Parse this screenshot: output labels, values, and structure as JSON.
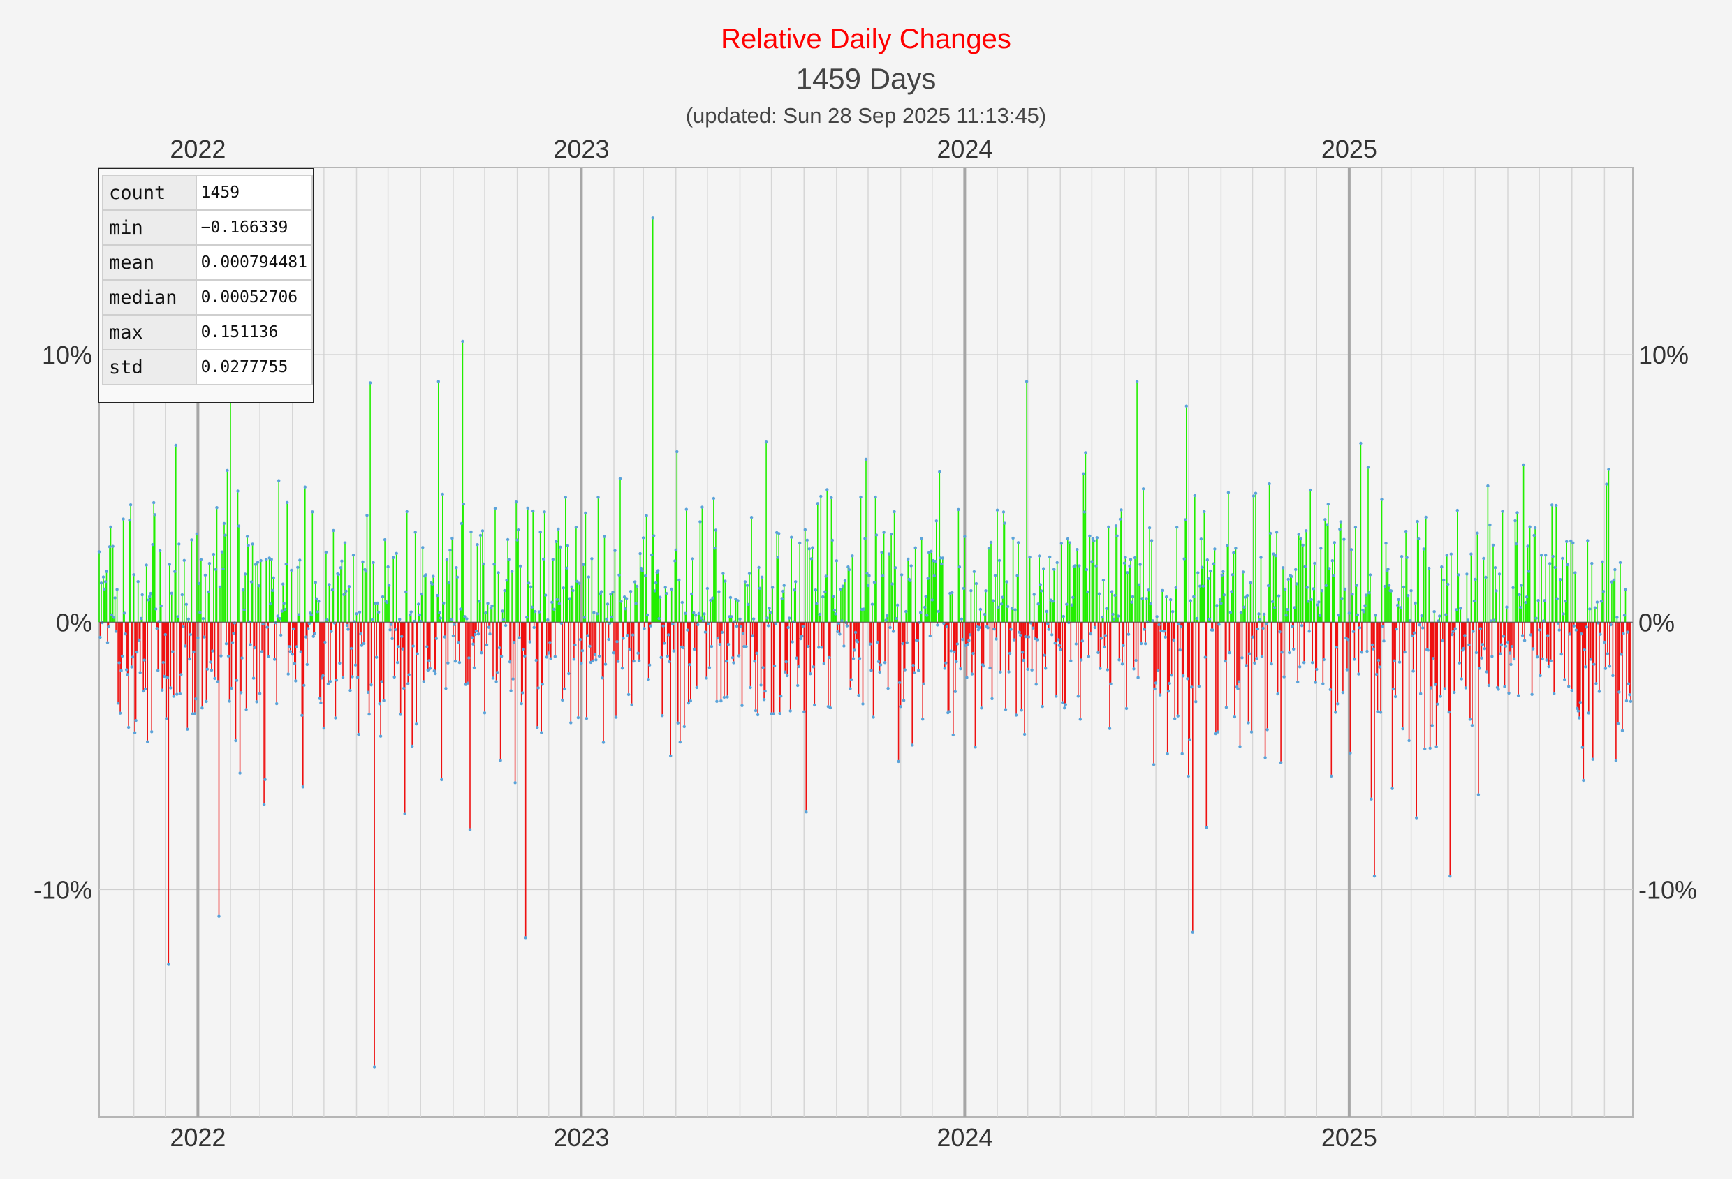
{
  "chart_data": {
    "type": "bar",
    "title": "Relative Daily Changes",
    "subtitle": "1459 Days",
    "updated": "(updated: Sun 28 Sep 2025 11:13:45)",
    "x_axis": {
      "type": "date",
      "range": [
        "2021-09-29",
        "2025-09-28"
      ],
      "tick_labels": [
        "2022",
        "2023",
        "2024",
        "2025"
      ],
      "ticks": [
        "2022-01-01",
        "2023-01-01",
        "2024-01-01",
        "2025-01-01"
      ],
      "monthly_gridlines": true
    },
    "y_axis": {
      "ylim": [
        -0.185,
        0.17
      ],
      "tick_labels": [
        "-10%",
        "0%",
        "10%"
      ],
      "ticks": [
        -0.1,
        0,
        0.1
      ],
      "shown_both_sides": true
    },
    "colors": {
      "positive": "#22ee00",
      "negative": "#ee1111",
      "point": "#5ba3d9",
      "title": "#ff0000"
    },
    "grid": true,
    "highlighted_points": [
      {
        "date": "2023-03-10",
        "value": 0.151136
      },
      {
        "date": "2022-06-18",
        "value": -0.166339
      },
      {
        "date": "2022-09-10",
        "value": 0.105
      },
      {
        "date": "2024-08-05",
        "value": -0.116
      },
      {
        "date": "2022-11-09",
        "value": -0.118
      },
      {
        "date": "2021-12-04",
        "value": -0.128
      },
      {
        "date": "2022-01-21",
        "value": -0.11
      }
    ],
    "series_note": "daily relative change, one bar per day",
    "summary": {
      "count": "1459",
      "min": "−0.166339",
      "mean": "0.000794481",
      "median": "0.00052706",
      "max": "0.151136",
      "std": "0.0277755"
    }
  },
  "stats_table": {
    "rows": [
      {
        "key": "count",
        "value": "1459"
      },
      {
        "key": "min",
        "value": "−0.166339"
      },
      {
        "key": "mean",
        "value": "0.000794481"
      },
      {
        "key": "median",
        "value": "0.00052706"
      },
      {
        "key": "max",
        "value": "0.151136"
      },
      {
        "key": "std",
        "value": "0.0277755"
      }
    ]
  }
}
